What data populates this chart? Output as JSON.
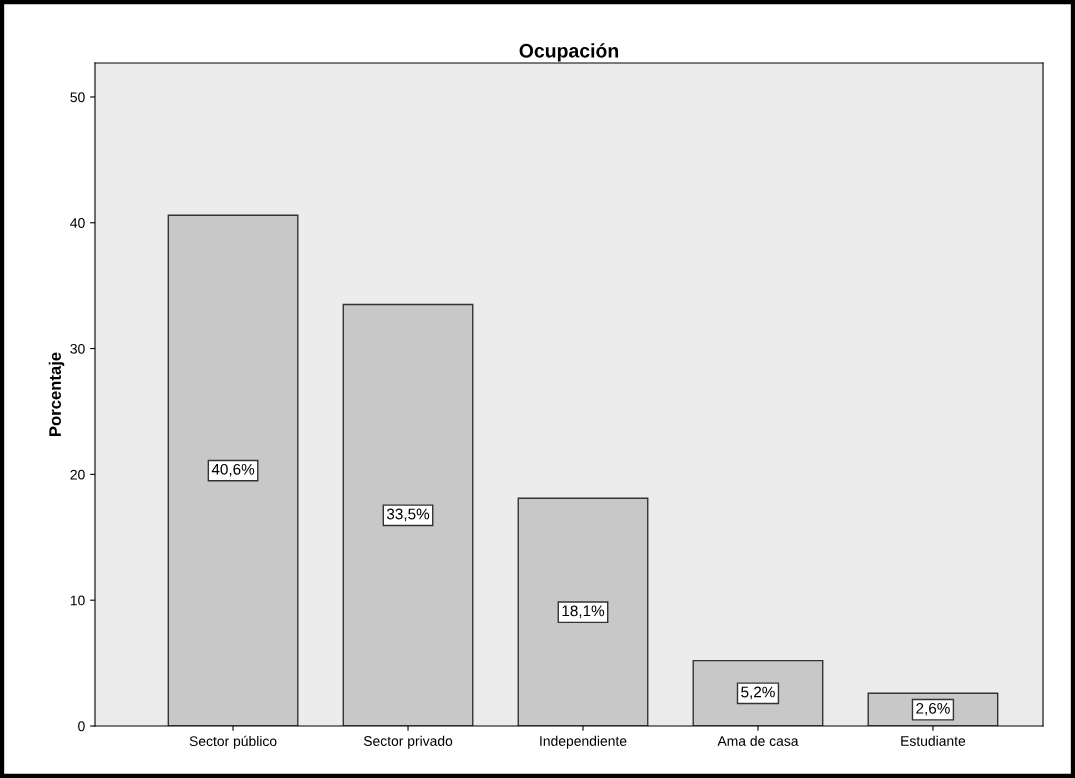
{
  "chart_data": {
    "type": "bar",
    "title": "Ocupación",
    "ylabel": "Porcentaje",
    "categories": [
      "Sector público",
      "Sector privado",
      "Independiente",
      "Ama de casa",
      "Estudiante"
    ],
    "values": [
      40.6,
      33.5,
      18.1,
      5.2,
      2.6
    ],
    "value_labels": [
      "40,6%",
      "33,5%",
      "18,1%",
      "5,2%",
      "2,6%"
    ],
    "color": "#c8c8c8",
    "ylim": [
      0,
      52.7
    ],
    "yticks": [
      0,
      10,
      20,
      30,
      40,
      50
    ],
    "grid": false,
    "legend": false
  }
}
